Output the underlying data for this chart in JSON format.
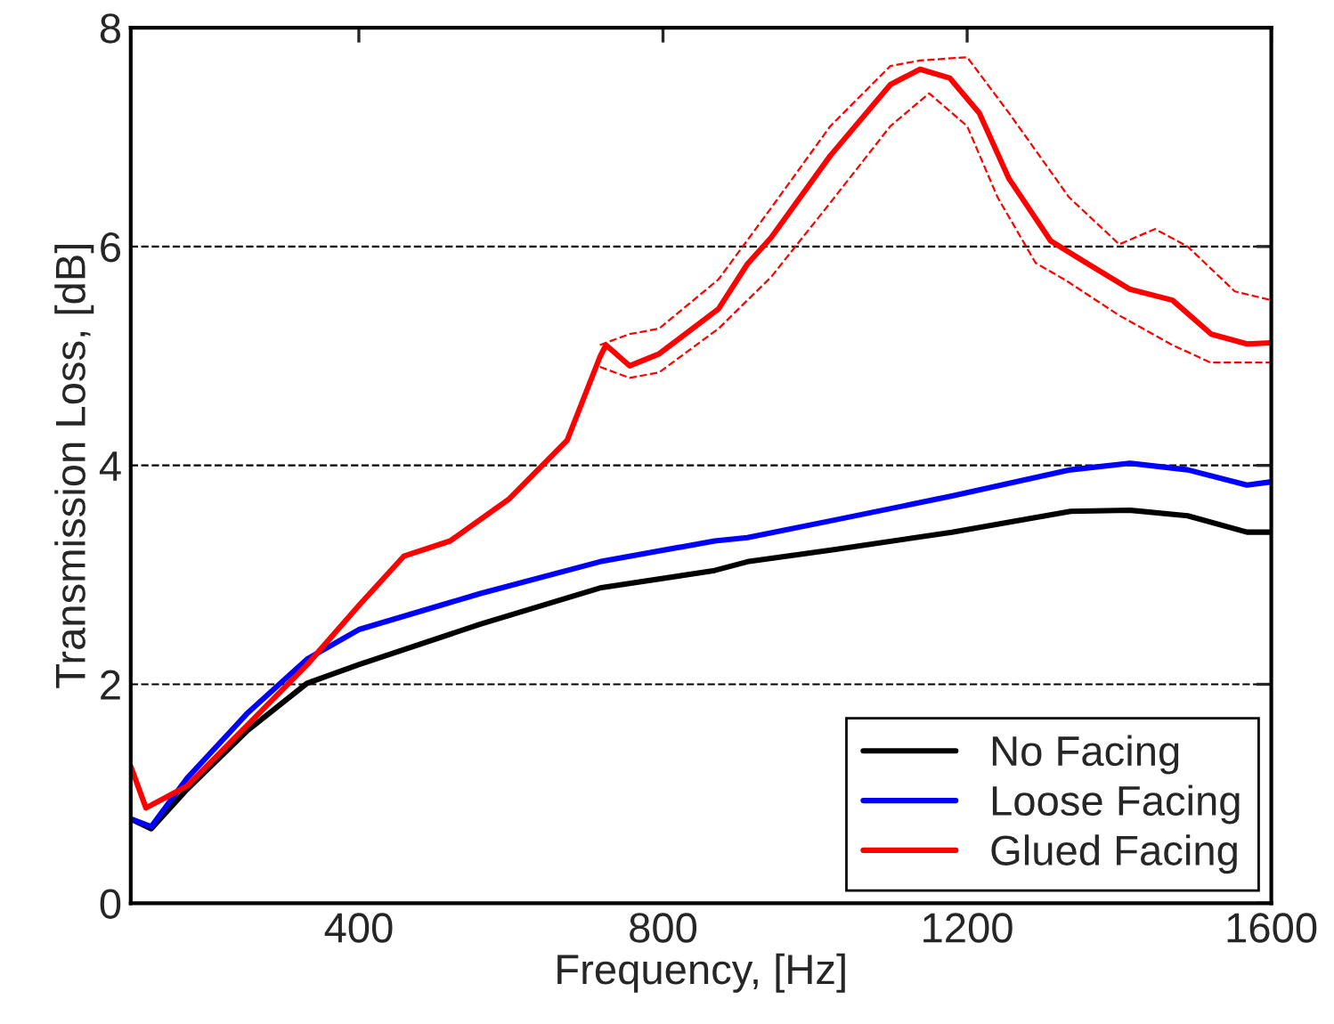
{
  "chart_data": {
    "type": "line",
    "xlabel": "Frequency, [Hz]",
    "ylabel": "Transmission Loss, [dB]",
    "xlim": [
      100,
      1600
    ],
    "xticks": [
      400,
      800,
      1200,
      1600
    ],
    "ylim": [
      0,
      8
    ],
    "yticks": [
      0,
      2,
      4,
      6,
      8
    ],
    "grid": "y",
    "legend": "bottom right",
    "line_style": "solid",
    "series": [
      {
        "name": "No Facing",
        "color": "#000000",
        "x": [
          100,
          127,
          174,
          254,
          332,
          400,
          560,
          717,
          868,
          911,
          1025,
          1180,
          1336,
          1414,
          1490,
          1568,
          1600
        ],
        "values": [
          0.77,
          0.68,
          1.04,
          1.58,
          2.01,
          2.18,
          2.55,
          2.88,
          3.04,
          3.12,
          3.23,
          3.39,
          3.58,
          3.59,
          3.54,
          3.39,
          3.39
        ]
      },
      {
        "name": "Loose Facing",
        "color": "#0000ff",
        "x": [
          100,
          127,
          174,
          254,
          332,
          400,
          560,
          717,
          868,
          911,
          1025,
          1180,
          1336,
          1414,
          1490,
          1568,
          1600
        ],
        "values": [
          0.77,
          0.7,
          1.14,
          1.74,
          2.23,
          2.5,
          2.83,
          3.12,
          3.31,
          3.34,
          3.5,
          3.72,
          3.96,
          4.02,
          3.96,
          3.82,
          3.85
        ]
      },
      {
        "name": "Glued Facing",
        "color": "#ff0000",
        "x": [
          100,
          120,
          174,
          254,
          332,
          400,
          459,
          520,
          597,
          674,
          717,
          725,
          756,
          795,
          873,
          911,
          942,
          1020,
          1099,
          1138,
          1177,
          1216,
          1255,
          1310,
          1357,
          1414,
          1470,
          1521,
          1568,
          1600
        ],
        "values": [
          1.25,
          0.87,
          1.07,
          1.63,
          2.18,
          2.72,
          3.17,
          3.31,
          3.69,
          4.23,
          4.99,
          5.1,
          4.91,
          5.02,
          5.43,
          5.84,
          6.08,
          6.83,
          7.48,
          7.62,
          7.54,
          7.22,
          6.62,
          6.05,
          5.85,
          5.61,
          5.51,
          5.2,
          5.11,
          5.12
        ]
      },
      {
        "color": "#ff0000",
        "line_style": "dashed",
        "x": [
          717,
          756,
          795,
          873,
          942,
          1020,
          1099,
          1138,
          1200,
          1255,
          1334,
          1400,
          1447,
          1490,
          1552,
          1600
        ],
        "values": [
          5.1,
          5.2,
          5.25,
          5.7,
          6.35,
          7.1,
          7.65,
          7.7,
          7.73,
          7.22,
          6.45,
          6.02,
          6.16,
          6.0,
          5.59,
          5.51
        ]
      },
      {
        "color": "#ff0000",
        "line_style": "dashed",
        "x": [
          717,
          756,
          795,
          873,
          942,
          1020,
          1099,
          1150,
          1200,
          1240,
          1290,
          1330,
          1400,
          1470,
          1520,
          1600
        ],
        "values": [
          4.9,
          4.8,
          4.85,
          5.25,
          5.72,
          6.4,
          7.1,
          7.4,
          7.1,
          6.45,
          5.85,
          5.69,
          5.37,
          5.1,
          4.94,
          4.94
        ]
      }
    ]
  }
}
